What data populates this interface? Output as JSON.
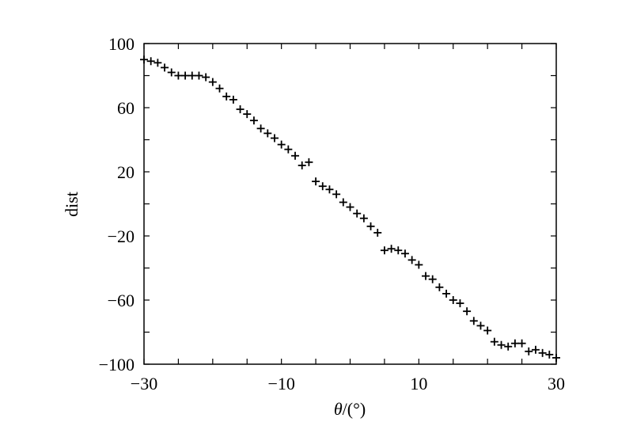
{
  "chart_data": {
    "type": "scatter",
    "xlabel": "θ/(°)",
    "ylabel": "dist",
    "xlim": [
      -30,
      30
    ],
    "ylim": [
      -100,
      100
    ],
    "xticks": [
      -30,
      -10,
      10,
      30
    ],
    "xtick_labels": [
      "−30",
      "−10",
      "10",
      "30"
    ],
    "yticks": [
      -100,
      -60,
      -20,
      20,
      60,
      100
    ],
    "ytick_labels": [
      "−100",
      "−60",
      "−20",
      "20",
      "60",
      "100"
    ],
    "marker": "+",
    "grid": false,
    "series": [
      {
        "x": [
          -30,
          -29,
          -28,
          -27,
          -26,
          -25,
          -24,
          -23,
          -22,
          -21,
          -20,
          -19,
          -18,
          -17,
          -16,
          -15,
          -14,
          -13,
          -12,
          -11,
          -10,
          -9,
          -8,
          -7,
          -6,
          -5,
          -4,
          -3,
          -2,
          -1,
          0,
          1,
          2,
          3,
          4,
          5,
          6,
          7,
          8,
          9,
          10,
          11,
          12,
          13,
          14,
          15,
          16,
          17,
          18,
          19,
          20,
          21,
          22,
          23,
          24,
          25,
          26,
          27,
          28,
          29,
          30
        ],
        "y": [
          90,
          89,
          88,
          85,
          82,
          80,
          80,
          80,
          80,
          79,
          76,
          72,
          67,
          65,
          59,
          56,
          52,
          47,
          44,
          41,
          37,
          34,
          30,
          24,
          26,
          14,
          11,
          9,
          6,
          1,
          -2,
          -6,
          -9,
          -14,
          -18,
          -29,
          -28,
          -29,
          -31,
          -35,
          -38,
          -45,
          -47,
          -52,
          -56,
          -60,
          -62,
          -67,
          -73,
          -76,
          -79,
          -86,
          -88,
          -89,
          -87,
          -87,
          -92,
          -91,
          -93,
          -94,
          -96
        ]
      }
    ]
  }
}
